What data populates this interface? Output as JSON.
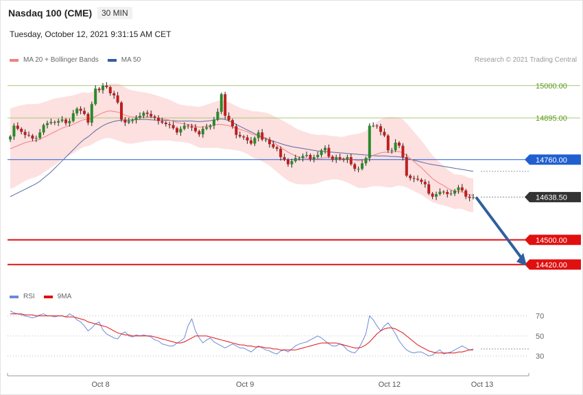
{
  "header": {
    "instrument": "Nasdaq 100 (CME)",
    "timeframe": "30 MIN",
    "datetime": "Tuesday, October 12, 2021 9:31:15 AM CET",
    "credit": "Research © 2021 Trading Central"
  },
  "legend": {
    "ma20_label": "MA 20 + Bollinger Bands",
    "ma50_label": "MA 50",
    "rsi_label": "RSI",
    "rsi9_label": "9MA"
  },
  "colors": {
    "bull": "#2a8a2a",
    "bear": "#c01e1e",
    "band": "#fde0e0",
    "ma20": "#f08080",
    "ma50": "#5a6aa0",
    "resistance": "#a8c878",
    "pivot": "#1f5fd0",
    "support": "#e01010",
    "current": "#333333",
    "arrow": "#2f5f9f",
    "rsi": "#6a8ad8",
    "rsi9": "#e01010"
  },
  "chart_data": [
    {
      "type": "candlestick",
      "x_tick_labels": [
        "Oct 8",
        "Oct 9",
        "Oct 12",
        "Oct 13"
      ],
      "ylim": [
        14375,
        15035
      ],
      "levels": [
        {
          "value": 15000.0,
          "label": "15000.00",
          "kind": "resistance"
        },
        {
          "value": 14895.0,
          "label": "14895.00",
          "kind": "resistance"
        },
        {
          "value": 14760.0,
          "label": "14760.00",
          "kind": "pivot"
        },
        {
          "value": 14638.5,
          "label": "14638.50",
          "kind": "current"
        },
        {
          "value": 14500.0,
          "label": "14500.00",
          "kind": "support"
        },
        {
          "value": 14420.0,
          "label": "14420.00",
          "kind": "support"
        }
      ],
      "forecast": {
        "from": 14638.5,
        "to": 14420.0
      },
      "close": [
        14835,
        14870,
        14860,
        14850,
        14840,
        14838,
        14828,
        14830,
        14848,
        14872,
        14878,
        14882,
        14880,
        14885,
        14890,
        14878,
        14885,
        14910,
        14925,
        14918,
        14908,
        14880,
        14940,
        14990,
        14985,
        15000,
        14995,
        14975,
        14968,
        14945,
        14890,
        14880,
        14885,
        14888,
        14896,
        14902,
        14912,
        14908,
        14900,
        14896,
        14885,
        14880,
        14875,
        14872,
        14862,
        14848,
        14860,
        14870,
        14868,
        14864,
        14852,
        14842,
        14860,
        14865,
        14870,
        14890,
        14915,
        14972,
        14902,
        14888,
        14868,
        14840,
        14835,
        14832,
        14822,
        14812,
        14830,
        14848,
        14825,
        14825,
        14810,
        14800,
        14795,
        14768,
        14760,
        14745,
        14755,
        14765,
        14765,
        14772,
        14775,
        14762,
        14768,
        14775,
        14790,
        14798,
        14770,
        14760,
        14768,
        14762,
        14760,
        14768,
        14745,
        14730,
        14730,
        14748,
        14765,
        14870,
        14870,
        14868,
        14850,
        14838,
        14790,
        14790,
        14815,
        14805,
        14768,
        14708,
        14700,
        14698,
        14695,
        14688,
        14680,
        14650,
        14640,
        14648,
        14656,
        14655,
        14648,
        14650,
        14660,
        14670,
        14660,
        14640,
        14636,
        14638
      ],
      "ma20": [
        14795,
        14800,
        14805,
        14810,
        14815,
        14818,
        14820,
        14822,
        14826,
        14832,
        14838,
        14844,
        14850,
        14856,
        14862,
        14866,
        14870,
        14874,
        14880,
        14886,
        14890,
        14890,
        14894,
        14900,
        14906,
        14912,
        14916,
        14918,
        14916,
        14914,
        14910,
        14904,
        14900,
        14898,
        14898,
        14898,
        14898,
        14898,
        14897,
        14896,
        14894,
        14892,
        14890,
        14888,
        14884,
        14880,
        14878,
        14876,
        14874,
        14872,
        14868,
        14865,
        14866,
        14868,
        14870,
        14872,
        14874,
        14874,
        14872,
        14870,
        14866,
        14862,
        14858,
        14854,
        14850,
        14844,
        14840,
        14838,
        14834,
        14830,
        14824,
        14816,
        14808,
        14800,
        14792,
        14784,
        14778,
        14772,
        14768,
        14766,
        14764,
        14762,
        14762,
        14762,
        14764,
        14766,
        14766,
        14766,
        14766,
        14764,
        14762,
        14762,
        14760,
        14758,
        14756,
        14758,
        14760,
        14768,
        14774,
        14778,
        14782,
        14784,
        14784,
        14784,
        14786,
        14786,
        14782,
        14774,
        14764,
        14754,
        14744,
        14734,
        14722,
        14710,
        14698,
        14690,
        14682,
        14676,
        14668,
        14662,
        14656,
        14656,
        14655,
        14650,
        14646,
        14644
      ],
      "ma50": [
        14640,
        14646,
        14652,
        14658,
        14664,
        14670,
        14676,
        14682,
        14690,
        14700,
        14710,
        14720,
        14732,
        14744,
        14756,
        14768,
        14780,
        14792,
        14804,
        14816,
        14826,
        14834,
        14844,
        14854,
        14862,
        14870,
        14876,
        14880,
        14884,
        14886,
        14888,
        14888,
        14888,
        14889,
        14890,
        14890,
        14890,
        14890,
        14889,
        14888,
        14888,
        14888,
        14887,
        14887,
        14886,
        14885,
        14885,
        14885,
        14885,
        14885,
        14884,
        14883,
        14884,
        14885,
        14886,
        14888,
        14890,
        14892,
        14890,
        14886,
        14880,
        14874,
        14868,
        14862,
        14856,
        14850,
        14844,
        14838,
        14832,
        14828,
        14824,
        14820,
        14816,
        14812,
        14808,
        14805,
        14802,
        14800,
        14798,
        14796,
        14794,
        14792,
        14790,
        14788,
        14787,
        14786,
        14785,
        14784,
        14783,
        14782,
        14781,
        14780,
        14779,
        14778,
        14777,
        14776,
        14775,
        14774,
        14773,
        14772,
        14772,
        14772,
        14771,
        14770,
        14770,
        14769,
        14767,
        14764,
        14761,
        14758,
        14755,
        14752,
        14749,
        14746,
        14744,
        14742,
        14740,
        14738,
        14736,
        14734,
        14732,
        14730,
        14728,
        14726,
        14724,
        14722
      ],
      "bb_width": [
        130,
        130,
        128,
        126,
        124,
        122,
        120,
        118,
        116,
        114,
        112,
        110,
        108,
        104,
        100,
        98,
        96,
        94,
        92,
        90,
        88,
        86,
        85,
        84,
        84,
        85,
        86,
        88,
        90,
        92,
        92,
        90,
        88,
        86,
        84,
        82,
        80,
        78,
        76,
        74,
        72,
        70,
        68,
        66,
        64,
        62,
        60,
        60,
        60,
        62,
        64,
        66,
        68,
        70,
        72,
        74,
        76,
        78,
        78,
        76,
        74,
        72,
        70,
        70,
        72,
        74,
        76,
        78,
        80,
        82,
        84,
        86,
        88,
        90,
        92,
        92,
        92,
        90,
        88,
        86,
        84,
        82,
        80,
        78,
        76,
        74,
        72,
        70,
        70,
        70,
        72,
        76,
        80,
        84,
        88,
        90,
        92,
        96,
        100,
        104,
        108,
        112,
        114,
        114,
        112,
        110,
        108,
        104,
        100,
        96,
        92,
        88,
        84,
        80,
        76,
        72,
        68,
        64,
        60,
        58,
        56,
        55,
        55,
        55,
        55,
        55
      ]
    },
    {
      "type": "line",
      "name": "RSI",
      "x_tick_labels": [
        "Oct 8",
        "Oct 9",
        "Oct 12",
        "Oct 13"
      ],
      "y_tick_labels": [
        "70",
        "50",
        "30"
      ],
      "ylim": [
        15,
        80
      ],
      "levels": [
        70,
        50,
        30
      ],
      "rsi": [
        75,
        73,
        72,
        71,
        70,
        69,
        68,
        69,
        71,
        72,
        70,
        70,
        69,
        70,
        70,
        69,
        72,
        70,
        66,
        64,
        60,
        55,
        58,
        62,
        64,
        56,
        52,
        50,
        48,
        47,
        52,
        54,
        50,
        49,
        51,
        50,
        51,
        50,
        49,
        46,
        45,
        42,
        41,
        40,
        40,
        43,
        45,
        48,
        60,
        67,
        55,
        48,
        43,
        46,
        48,
        44,
        42,
        40,
        38,
        40,
        42,
        40,
        38,
        38,
        36,
        34,
        37,
        40,
        38,
        36,
        35,
        33,
        32,
        35,
        36,
        34,
        37,
        40,
        42,
        43,
        44,
        46,
        48,
        50,
        48,
        45,
        42,
        40,
        40,
        42,
        40,
        36,
        34,
        33,
        37,
        44,
        52,
        70,
        66,
        60,
        55,
        60,
        63,
        58,
        52,
        45,
        40,
        36,
        34,
        33,
        34,
        34,
        32,
        30,
        31,
        34,
        36,
        32,
        33,
        34,
        36,
        38,
        40,
        38,
        36,
        37
      ],
      "rsi9": [
        72,
        72,
        72,
        72,
        71,
        71,
        71,
        70,
        70,
        70,
        70,
        70,
        70,
        70,
        70,
        69,
        69,
        69,
        68,
        67,
        66,
        64,
        63,
        62,
        61,
        60,
        59,
        57,
        55,
        53,
        52,
        51,
        51,
        50,
        50,
        50,
        50,
        50,
        50,
        49,
        48,
        47,
        46,
        45,
        44,
        43,
        43,
        44,
        46,
        48,
        50,
        50,
        50,
        50,
        49,
        48,
        47,
        46,
        45,
        44,
        43,
        42,
        41,
        41,
        40,
        40,
        39,
        39,
        39,
        38,
        38,
        37,
        37,
        36,
        36,
        36,
        36,
        36,
        37,
        38,
        39,
        40,
        41,
        42,
        43,
        43,
        43,
        43,
        43,
        42,
        41,
        40,
        39,
        38,
        38,
        39,
        41,
        44,
        48,
        52,
        55,
        57,
        58,
        58,
        57,
        55,
        53,
        50,
        47,
        44,
        41,
        39,
        37,
        35,
        34,
        33,
        33,
        33,
        33,
        33,
        33,
        34,
        34,
        35,
        36,
        36
      ]
    }
  ]
}
